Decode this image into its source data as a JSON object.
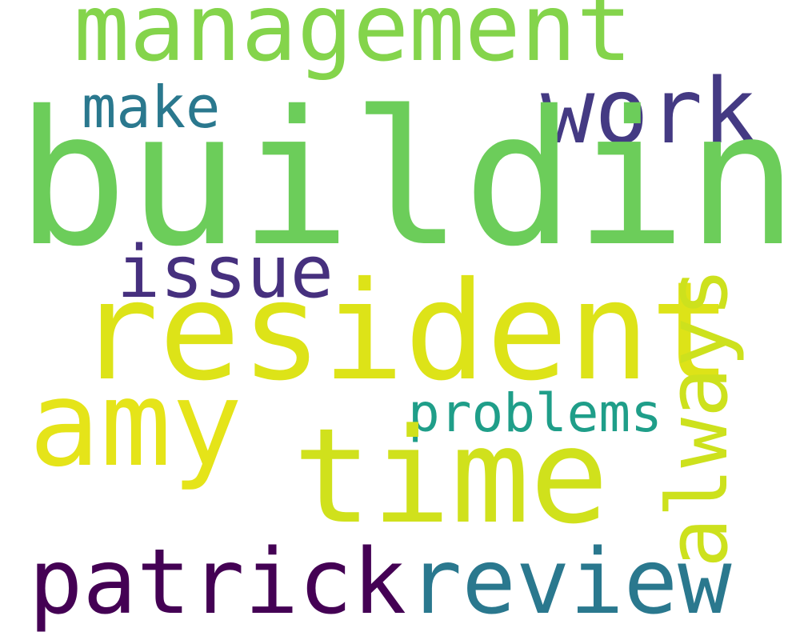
{
  "background_color": "#ffffff",
  "words": [
    {
      "text": "building",
      "color": "#6ccd5a"
    },
    {
      "text": "resident",
      "color": "#dde318"
    },
    {
      "text": "time",
      "color": "#d0e11c"
    },
    {
      "text": "amy",
      "color": "#e5e419"
    },
    {
      "text": "management",
      "color": "#84d44b"
    },
    {
      "text": "work",
      "color": "#443a83"
    },
    {
      "text": "make",
      "color": "#2a788e"
    },
    {
      "text": "issue",
      "color": "#46307e"
    },
    {
      "text": "problems",
      "color": "#1f9e89"
    },
    {
      "text": "always",
      "color": "#cde11d"
    },
    {
      "text": "patrick",
      "color": "#440154"
    },
    {
      "text": "review",
      "color": "#2a788e"
    }
  ]
}
